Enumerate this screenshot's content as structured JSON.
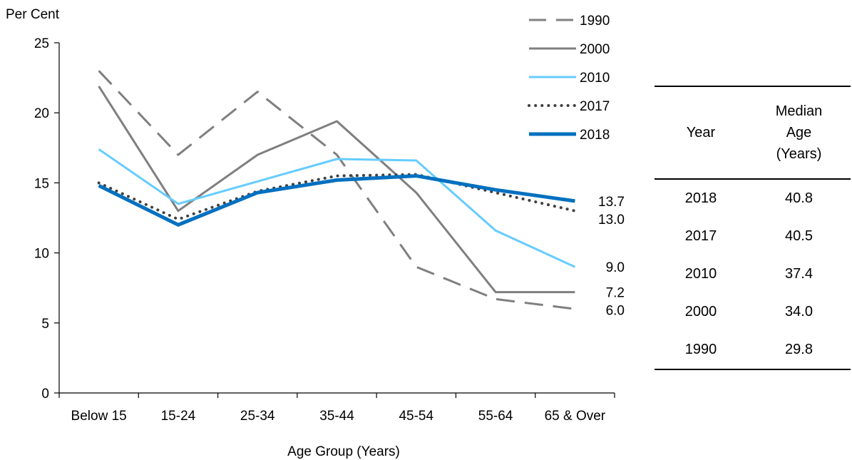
{
  "chart_data": {
    "type": "line",
    "ylabel": "Per Cent",
    "xlabel": "Age Group (Years)",
    "ylim": [
      0,
      25
    ],
    "yticks": [
      0,
      5,
      10,
      15,
      20,
      25
    ],
    "categories": [
      "Below 15",
      "15-24",
      "25-34",
      "35-44",
      "45-54",
      "55-64",
      "65 & Over"
    ],
    "legend_position": "top-right",
    "series": [
      {
        "name": "1990",
        "values": [
          23.0,
          17.0,
          21.5,
          17.0,
          9.0,
          6.7,
          6.0
        ],
        "color": "#7f7f7f",
        "style": "dashed",
        "end_label": "6.0"
      },
      {
        "name": "2000",
        "values": [
          21.9,
          13.0,
          17.0,
          19.4,
          14.3,
          7.2,
          7.2
        ],
        "color": "#7f7f7f",
        "style": "solid",
        "end_label": "7.2"
      },
      {
        "name": "2010",
        "values": [
          17.4,
          13.5,
          15.1,
          16.7,
          16.6,
          11.6,
          9.0
        ],
        "color": "#66ccff",
        "style": "solid",
        "end_label": "9.0"
      },
      {
        "name": "2017",
        "values": [
          15.0,
          12.4,
          14.4,
          15.5,
          15.6,
          14.3,
          13.0
        ],
        "color": "#404040",
        "style": "dotted",
        "end_label": "13.0"
      },
      {
        "name": "2018",
        "values": [
          14.8,
          12.0,
          14.3,
          15.2,
          15.5,
          14.5,
          13.7
        ],
        "color": "#0070c0",
        "style": "thick",
        "end_label": "13.7"
      }
    ]
  },
  "table": {
    "header_year": "Year",
    "header_median_lines": [
      "Median",
      "Age",
      "(Years)"
    ],
    "rows": [
      {
        "year": "2018",
        "median": "40.8"
      },
      {
        "year": "2017",
        "median": "40.5"
      },
      {
        "year": "2010",
        "median": "37.4"
      },
      {
        "year": "2000",
        "median": "34.0"
      },
      {
        "year": "1990",
        "median": "29.8"
      }
    ]
  }
}
